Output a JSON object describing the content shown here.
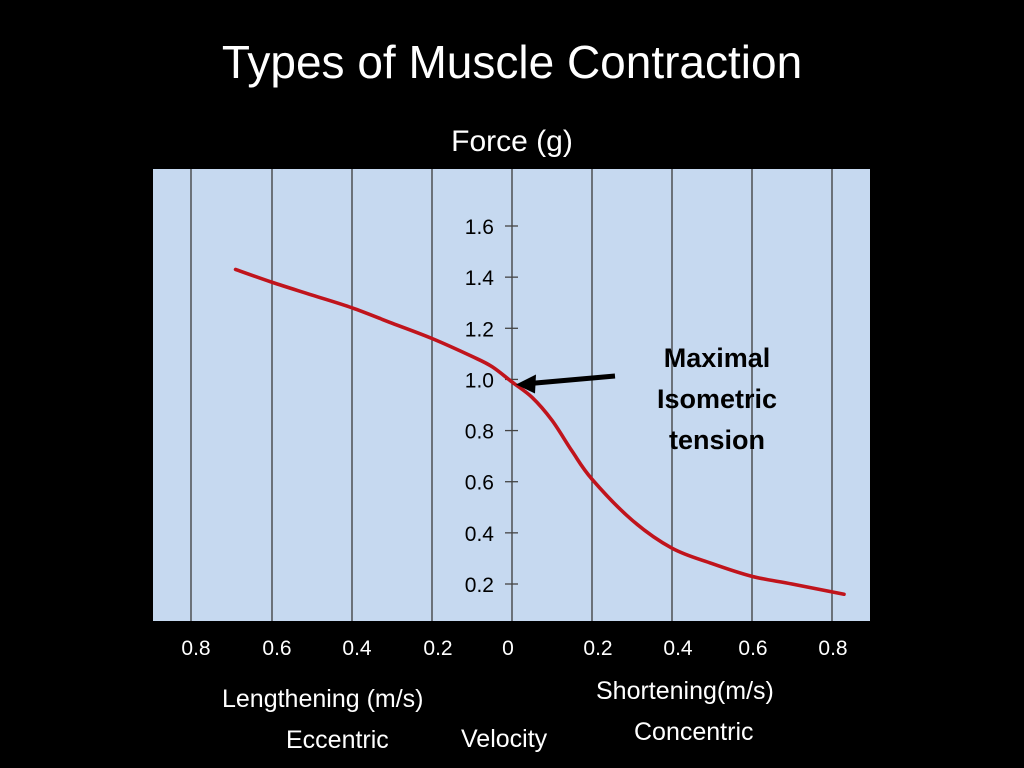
{
  "slide": {
    "title": "Types of Muscle Contraction"
  },
  "chart_data": {
    "type": "line",
    "title": "Types of Muscle Contraction",
    "ylabel": "Force (g)",
    "xlabel": "Velocity",
    "x_left_label": "Lengthening (m/s)",
    "x_left_sublabel": "Eccentric",
    "x_right_label": "Shortening(m/s)",
    "x_right_sublabel": "Concentric",
    "xlim": [
      -0.9,
      0.9
    ],
    "ylim": [
      0.05,
      1.8
    ],
    "x_ticks": [
      -0.8,
      -0.6,
      -0.4,
      -0.2,
      0,
      0.2,
      0.4,
      0.6,
      0.8
    ],
    "x_tick_labels": [
      "0.8",
      "0.6",
      "0.4",
      "0.2",
      "0",
      "0.2",
      "0.4",
      "0.6",
      "0.8"
    ],
    "y_ticks": [
      0.2,
      0.4,
      0.6,
      0.8,
      1.0,
      1.2,
      1.4,
      1.6
    ],
    "y_tick_labels": [
      "0.2",
      "0.4",
      "0.6",
      "0.8",
      "1.0",
      "1.2",
      "1.4",
      "1.6"
    ],
    "grid": "vertical",
    "series": [
      {
        "color": "#c0141c",
        "x": [
          -0.69,
          -0.6,
          -0.5,
          -0.4,
          -0.3,
          -0.2,
          -0.1,
          -0.05,
          0,
          0.05,
          0.1,
          0.15,
          0.2,
          0.3,
          0.4,
          0.5,
          0.6,
          0.7,
          0.83
        ],
        "y": [
          1.43,
          1.38,
          1.33,
          1.28,
          1.22,
          1.16,
          1.09,
          1.05,
          0.99,
          0.93,
          0.84,
          0.72,
          0.61,
          0.45,
          0.34,
          0.28,
          0.23,
          0.2,
          0.16
        ]
      }
    ],
    "annotation": {
      "lines": [
        "Maximal",
        "Isometric",
        "tension"
      ],
      "point": [
        0,
        0.98
      ]
    }
  }
}
